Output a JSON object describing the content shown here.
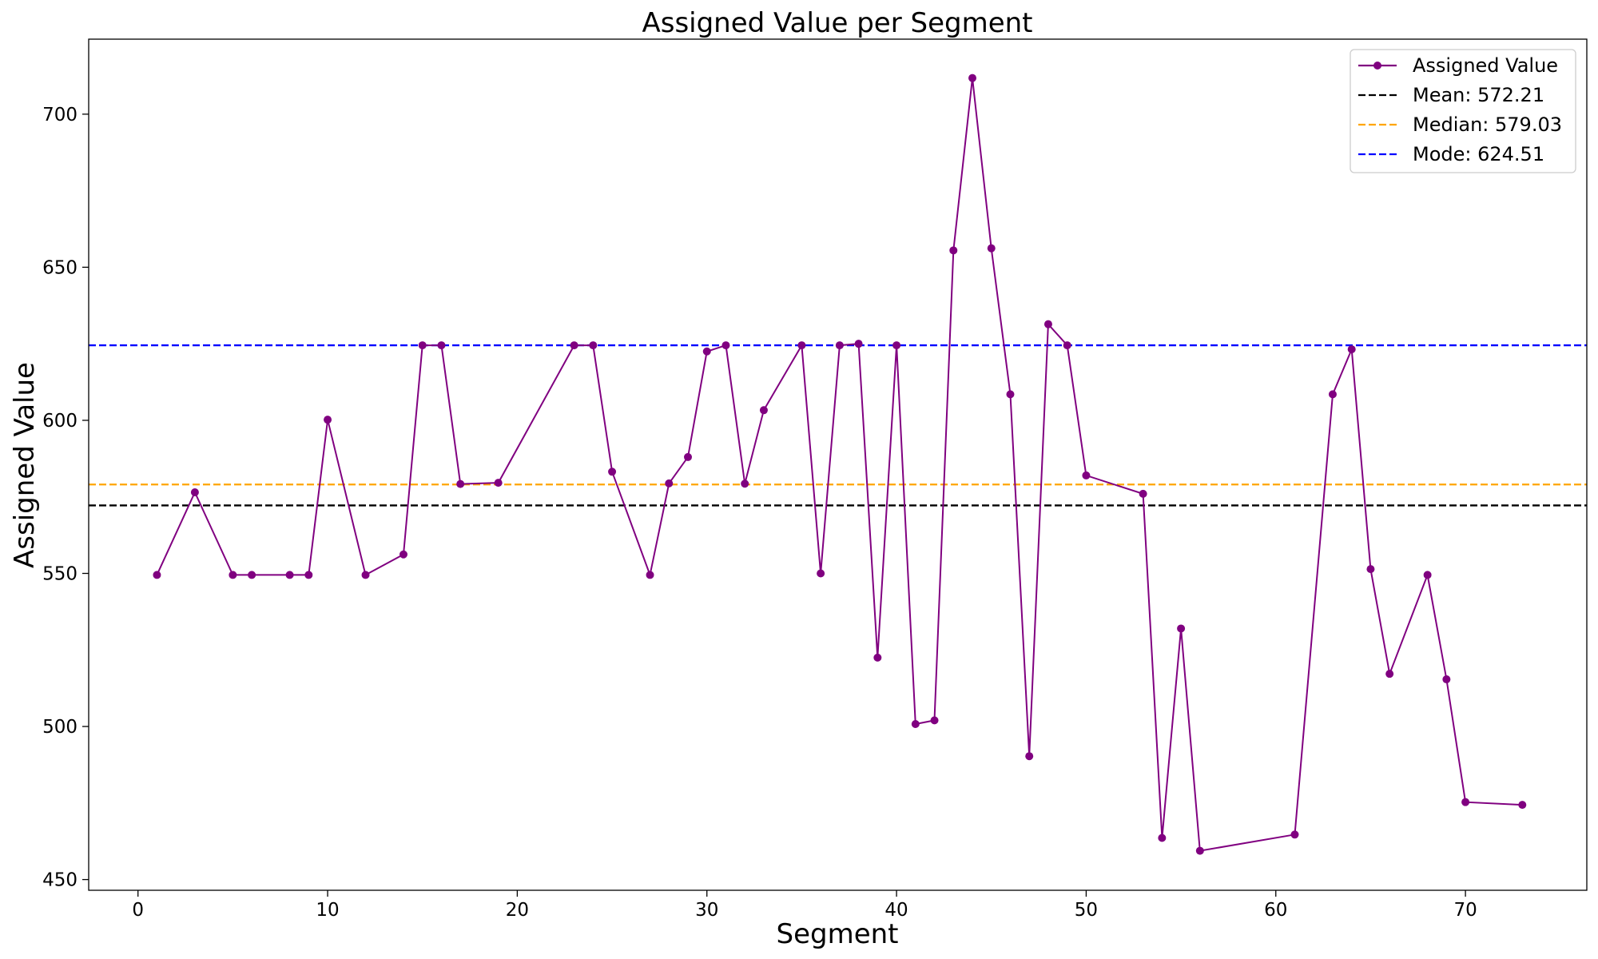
{
  "chart_data": {
    "type": "line",
    "title": "Assigned Value per Segment",
    "xlabel": "Segment",
    "ylabel": "Assigned Value",
    "xlim": [
      -2.6,
      76.4
    ],
    "ylim": [
      446.5,
      724.5
    ],
    "xticks": [
      0,
      10,
      20,
      30,
      40,
      50,
      60,
      70
    ],
    "yticks": [
      450,
      500,
      550,
      600,
      650,
      700
    ],
    "grid": false,
    "legend_position": "top-right",
    "series": [
      {
        "name": "Assigned Value",
        "color": "#800080",
        "marker": "circle",
        "x": [
          1,
          3,
          5,
          6,
          8,
          9,
          10,
          12,
          14,
          15,
          16,
          17,
          19,
          23,
          24,
          25,
          27,
          28,
          29,
          30,
          31,
          32,
          33,
          35,
          36,
          37,
          38,
          39,
          40,
          41,
          42,
          43,
          44,
          45,
          46,
          47,
          48,
          49,
          50,
          53,
          54,
          55,
          56,
          61,
          63,
          64,
          65,
          66,
          68,
          69,
          70,
          73
        ],
        "y": [
          549.5,
          576.5,
          549.5,
          549.5,
          549.5,
          549.5,
          600.2,
          549.5,
          556.2,
          624.5,
          624.5,
          579.2,
          579.6,
          624.5,
          624.5,
          583.2,
          549.5,
          579.4,
          588.0,
          622.5,
          624.5,
          579.3,
          603.3,
          624.5,
          550.0,
          624.5,
          625.0,
          522.5,
          624.5,
          500.8,
          502.0,
          655.5,
          711.8,
          656.2,
          608.5,
          490.3,
          631.4,
          624.5,
          582.0,
          576.0,
          463.6,
          532.0,
          459.4,
          464.7,
          608.5,
          623.2,
          551.4,
          517.2,
          549.5,
          515.4,
          475.3,
          474.4
        ]
      }
    ],
    "reference_lines": [
      {
        "name": "Mean: 572.21",
        "value": 572.21,
        "color": "#000000",
        "style": "dashed"
      },
      {
        "name": "Median: 579.03",
        "value": 579.03,
        "color": "#FFA500",
        "style": "dashed"
      },
      {
        "name": "Mode: 624.51",
        "value": 624.51,
        "color": "#0000FF",
        "style": "dashed"
      }
    ]
  }
}
